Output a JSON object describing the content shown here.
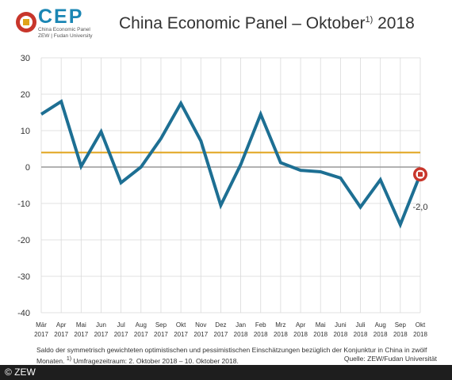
{
  "header": {
    "logo_text": "CEP",
    "logo_sub_1": "China Economic Panel",
    "logo_sub_2": "ZEW | Fudan University",
    "title_main": "China Economic Panel – Oktober",
    "title_sup": "1)",
    "title_year": " 2018"
  },
  "footnote": {
    "line1": "Saldo der symmetrisch gewichteten optimistischen und pessimistischen Einschätzungen bezüglich der Konjunktur in China in zwölf",
    "line2_a": "Monaten. ",
    "line2_sup": "1)",
    "line2_b": " Umfragezeitraum: 2. Oktober 2018 – 10. Oktober 2018.",
    "source": "Quelle: ZEW/Fudan Universität"
  },
  "copyright": "© ZEW",
  "colors": {
    "line": "#1d6f93",
    "average": "#e0a31b",
    "zero": "#999999",
    "grid": "#d9d9d9",
    "marker_outer": "#c8362b",
    "marker_inner": "#ffffff"
  },
  "chart_data": {
    "type": "line",
    "categories": [
      [
        "Mär",
        "2017"
      ],
      [
        "Apr",
        "2017"
      ],
      [
        "Mai",
        "2017"
      ],
      [
        "Jun",
        "2017"
      ],
      [
        "Jul",
        "2017"
      ],
      [
        "Aug",
        "2017"
      ],
      [
        "Sep",
        "2017"
      ],
      [
        "Okt",
        "2017"
      ],
      [
        "Nov",
        "2017"
      ],
      [
        "Dez",
        "2017"
      ],
      [
        "Jan",
        "2018"
      ],
      [
        "Feb",
        "2018"
      ],
      [
        "Mrz",
        "2018"
      ],
      [
        "Apr",
        "2018"
      ],
      [
        "Mai",
        "2018"
      ],
      [
        "Juni",
        "2018"
      ],
      [
        "Juli",
        "2018"
      ],
      [
        "Aug",
        "2018"
      ],
      [
        "Sep",
        "2018"
      ],
      [
        "Okt",
        "2018"
      ]
    ],
    "series": [
      {
        "values": [
          14.5,
          18.0,
          0.2,
          9.7,
          -4.3,
          0.0,
          7.8,
          17.5,
          7.2,
          -10.5,
          0.7,
          14.5,
          1.2,
          -0.9,
          -1.3,
          -3.0,
          -11.0,
          -3.5,
          -15.8,
          -2.0
        ]
      }
    ],
    "average_line": 4.0,
    "ylim": [
      -40,
      30
    ],
    "yticks": [
      30,
      20,
      10,
      0,
      -10,
      -20,
      -30,
      -40
    ],
    "last_value_label": "-2,0",
    "grid": true
  }
}
